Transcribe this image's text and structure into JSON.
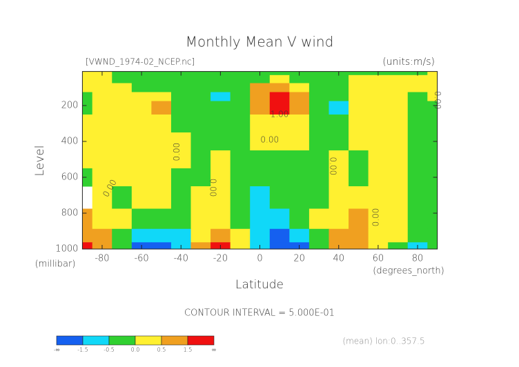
{
  "chart_data": {
    "type": "contour",
    "title": "Monthly Mean V wind",
    "subtitle_left": "[VWND_1974-02_NCEP.nc]",
    "subtitle_right": "(units:m/s)",
    "y_label": "Level",
    "y_unit": "(millibar)",
    "x_label": "Latitude",
    "x_unit": "(degrees_north)",
    "caption": "CONTOUR INTERVAL = 5.000E-01",
    "note": "(mean) lon:0..357.5",
    "x": [
      -90,
      -80,
      -70,
      -60,
      -50,
      -40,
      -30,
      -20,
      -10,
      0,
      10,
      20,
      30,
      40,
      50,
      60,
      70,
      80,
      90
    ],
    "levels": [
      10,
      50,
      100,
      150,
      200,
      300,
      400,
      500,
      600,
      700,
      850,
      925,
      1000
    ],
    "z": [
      [
        0.2,
        0.2,
        -0.2,
        -0.2,
        -0.2,
        -0.2,
        -0.2,
        -0.2,
        -0.2,
        -0.2,
        -0.2,
        -0.2,
        -0.2,
        -0.2,
        -0.2,
        -0.2,
        -0.2,
        -0.2,
        0.2
      ],
      [
        0.2,
        0.2,
        -0.2,
        -0.2,
        -0.2,
        -0.2,
        -0.2,
        -0.2,
        -0.2,
        -0.2,
        0.3,
        -0.2,
        -0.2,
        -0.2,
        0.2,
        0.2,
        0.2,
        0.2,
        0.2
      ],
      [
        0.2,
        0.2,
        0.1,
        -0.2,
        -0.2,
        -0.2,
        -0.2,
        -0.3,
        -0.2,
        0.6,
        0.8,
        0.3,
        -0.2,
        -0.2,
        0.2,
        0.2,
        0.2,
        0.2,
        0.2
      ],
      [
        -0.2,
        0.2,
        0.1,
        0.1,
        0.3,
        -0.2,
        -0.3,
        -0.7,
        -0.2,
        1.0,
        2.0,
        0.8,
        -0.2,
        -0.3,
        0.2,
        0.2,
        0.2,
        -0.2,
        0.2
      ],
      [
        -0.2,
        0.2,
        0.3,
        0.2,
        0.8,
        -0.2,
        -0.2,
        -0.2,
        -0.1,
        0.9,
        1.6,
        0.7,
        -0.2,
        -0.8,
        0.2,
        0.2,
        0.2,
        -0.2,
        -0.2
      ],
      [
        0.3,
        0.3,
        0.3,
        0.3,
        0.2,
        -0.2,
        -0.2,
        -0.2,
        -0.2,
        0.3,
        0.4,
        0.4,
        -0.1,
        -0.2,
        0.2,
        0.2,
        0.2,
        -0.2,
        -0.2
      ],
      [
        0.3,
        0.3,
        0.3,
        0.3,
        0.2,
        0.1,
        -0.2,
        -0.2,
        -0.2,
        0.2,
        0.3,
        0.3,
        -0.1,
        -0.2,
        0.2,
        0.3,
        0.2,
        -0.2,
        -0.2
      ],
      [
        0.3,
        0.3,
        0.2,
        0.3,
        0.3,
        0.1,
        -0.2,
        0.2,
        -0.2,
        -0.2,
        -0.2,
        -0.2,
        -0.2,
        0.2,
        -0.2,
        0.3,
        0.2,
        -0.2,
        -0.2
      ],
      [
        -0.2,
        0.2,
        0.2,
        0.3,
        0.2,
        -0.2,
        -0.2,
        0.3,
        -0.2,
        -0.2,
        -0.2,
        -0.2,
        -0.2,
        0.2,
        -0.2,
        0.3,
        0.2,
        -0.2,
        -0.2
      ],
      [
        null,
        0.2,
        -0.2,
        0.2,
        0.3,
        -0.2,
        0.2,
        0.3,
        -0.2,
        -0.7,
        -0.3,
        -0.2,
        -0.2,
        0.3,
        0.2,
        0.3,
        0.2,
        -0.2,
        -0.2
      ],
      [
        0.8,
        0.3,
        0.2,
        -0.2,
        -0.2,
        -0.2,
        0.2,
        0.2,
        -0.2,
        -0.8,
        -0.6,
        -0.2,
        0.2,
        0.4,
        0.6,
        0.3,
        0.2,
        -0.2,
        -0.2
      ],
      [
        1.0,
        0.8,
        -0.2,
        -0.8,
        -1.2,
        -0.6,
        0.3,
        0.8,
        0.3,
        -0.7,
        -1.6,
        -0.8,
        -0.2,
        0.7,
        0.9,
        0.4,
        0.2,
        -0.2,
        -0.2
      ],
      [
        1.8,
        1.0,
        -0.3,
        -1.8,
        -2.0,
        -0.8,
        0.5,
        1.6,
        0.4,
        -0.8,
        -2.0,
        -1.6,
        -0.3,
        0.8,
        1.0,
        0.3,
        -0.3,
        -0.7,
        -0.2
      ]
    ],
    "xlim": [
      -90,
      90
    ],
    "ylim": [
      1000,
      10
    ],
    "xticks": [
      -80,
      -60,
      -40,
      -20,
      0,
      20,
      40,
      60,
      80
    ],
    "yticks": [
      200,
      400,
      600,
      800,
      1000
    ],
    "colorbar": {
      "ticks": [
        "-∞",
        -1.5,
        -0.5,
        {
          "value": 0,
          "label": "0.0"
        },
        0.5,
        1.5,
        "∞"
      ],
      "colors": [
        "#1560f0",
        "#10d8f8",
        "#30d030",
        "#fff030",
        "#f0a020",
        "#f01010"
      ]
    },
    "annotations": [
      {
        "text": "1.00",
        "x": 10,
        "y": 250,
        "angle": 0
      },
      {
        "text": "0.00",
        "x": 5,
        "y": 392,
        "angle": 0
      },
      {
        "text": "0.00",
        "x": -42,
        "y": 458,
        "angle": -90
      },
      {
        "text": "0.00",
        "x": -76,
        "y": 662,
        "angle": -60
      },
      {
        "text": "0.00",
        "x": -24,
        "y": 658,
        "angle": 90
      },
      {
        "text": "0.00",
        "x": 37,
        "y": 538,
        "angle": 90
      },
      {
        "text": "0.00",
        "x": 59,
        "y": 823,
        "angle": -90
      },
      {
        "text": "0.00",
        "x": 90,
        "y": 170,
        "angle": 90
      }
    ]
  }
}
